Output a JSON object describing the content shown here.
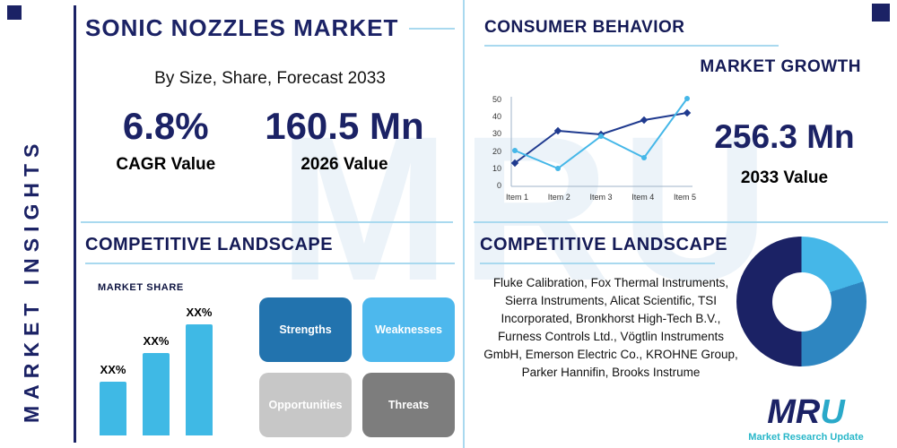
{
  "palette": {
    "navy": "#1b2265",
    "light_blue": "#45b7e8",
    "underline_blue": "#a9d9ef",
    "teal": "#29b7c9"
  },
  "sidebar": {
    "vertical_label": "MARKET INSIGHTS"
  },
  "top_left": {
    "title": "SONIC NOZZLES MARKET",
    "subtitle": "By Size, Share, Forecast 2033",
    "stats": [
      {
        "value": "6.8%",
        "label": "CAGR Value"
      },
      {
        "value": "160.5 Mn",
        "label": "2026 Value"
      }
    ]
  },
  "top_right": {
    "heading": "CONSUMER BEHAVIOR",
    "subheading": "MARKET GROWTH",
    "stat": {
      "value": "256.3 Mn",
      "label": "2033 Value"
    }
  },
  "bottom_left": {
    "heading": "COMPETITIVE LANDSCAPE",
    "market_share_label": "MARKET SHARE",
    "swot": [
      {
        "label": "Strengths",
        "color": "#2273ae"
      },
      {
        "label": "Weaknesses",
        "color": "#4db8ed"
      },
      {
        "label": "Opportunities",
        "color": "#c7c7c7"
      },
      {
        "label": "Threats",
        "color": "#7d7d7d"
      }
    ]
  },
  "bottom_right": {
    "heading": "COMPETITIVE LANDSCAPE",
    "companies": "Fluke Calibration, Fox Thermal Instruments, Sierra Instruments, Alicat Scientific, TSI Incorporated, Bronkhorst High-Tech B.V., Furness Controls Ltd., Vögtlin Instruments GmbH, Emerson Electric Co., KROHNE Group, Parker Hannifin, Brooks Instrume",
    "heading_note": ""
  },
  "logo": {
    "name_primary": "MR",
    "name_accent": "U",
    "tagline": "Market Research Update"
  },
  "watermark": {
    "text": "MRU"
  },
  "chart_data": [
    {
      "type": "line",
      "title": "Market Growth",
      "categories": [
        "Item 1",
        "Item 2",
        "Item 3",
        "Item 4",
        "Item 5"
      ],
      "series": [
        {
          "name": "series-dark-navy",
          "color": "#1f3a8f",
          "values": [
            13,
            31,
            29,
            37,
            41
          ]
        },
        {
          "name": "series-light-blue",
          "color": "#45b7e8",
          "values": [
            20,
            10,
            28,
            16,
            49
          ]
        }
      ],
      "ylim": [
        0,
        50
      ],
      "yticks": [
        0,
        10,
        20,
        30,
        40,
        50
      ],
      "legend": false,
      "grid": false
    },
    {
      "type": "bar",
      "title": "Market Share",
      "categories": [
        "XX%",
        "XX%",
        "XX%"
      ],
      "values": [
        30,
        46,
        62
      ],
      "ylim": [
        0,
        70
      ],
      "color": "#3fb9e5"
    },
    {
      "type": "donut",
      "title": "Competitive Landscape Share",
      "segments": [
        {
          "value": 20,
          "color": "#45b7e8"
        },
        {
          "value": 30,
          "color": "#2e86c1"
        },
        {
          "value": 50,
          "color": "#1b2265"
        }
      ]
    }
  ]
}
